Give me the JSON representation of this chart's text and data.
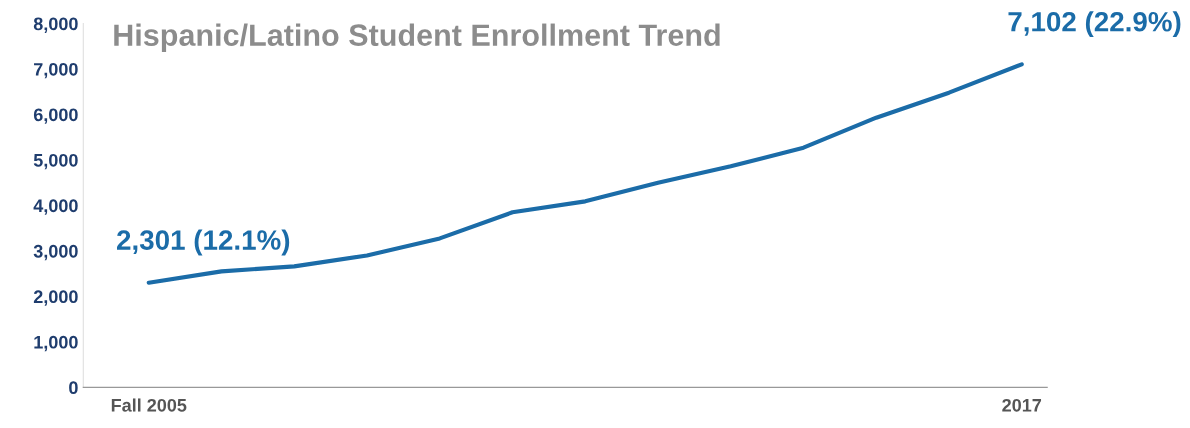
{
  "chart_data": {
    "type": "line",
    "title": "Hispanic/Latino Student Enrollment Trend",
    "categories": [
      "Fall 2005",
      null,
      null,
      null,
      null,
      null,
      null,
      null,
      null,
      null,
      null,
      null,
      "2017"
    ],
    "series": [
      {
        "color": "#1b6ca8",
        "values": [
          2301,
          2550,
          2660,
          2900,
          3275,
          3850,
          4090,
          4500,
          4860,
          5270,
          5930,
          6480,
          7102
        ]
      }
    ],
    "ylim": [
      0,
      8000
    ],
    "yticks": [
      {
        "value": 0,
        "label": "0"
      },
      {
        "value": 1000,
        "label": "1,000"
      },
      {
        "value": 2000,
        "label": "2,000"
      },
      {
        "value": 3000,
        "label": "3,000"
      },
      {
        "value": 4000,
        "label": "4,000"
      },
      {
        "value": 5000,
        "label": "5,000"
      },
      {
        "value": 6000,
        "label": "6,000"
      },
      {
        "value": 7000,
        "label": "7,000"
      },
      {
        "value": 8000,
        "label": "8,000"
      }
    ],
    "annotations": [
      {
        "text": "2,301 (12.1%)",
        "x": "Fall 2005",
        "y": 2301
      },
      {
        "text": "7,102 (22.9%)",
        "x": "2017",
        "y": 7102
      }
    ],
    "grid": false,
    "legend": false,
    "marker": "none",
    "line_style": "solid"
  }
}
